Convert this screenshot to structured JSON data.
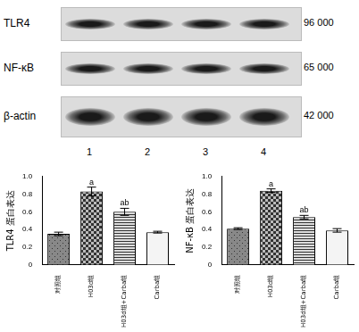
{
  "blot": {
    "rows": [
      {
        "label": "TLR4",
        "size": "96 000"
      },
      {
        "label": "NF-κB",
        "size": "65 000"
      },
      {
        "label": "β-actin",
        "size": "42 000"
      }
    ],
    "lanes": [
      "1",
      "2",
      "3",
      "4"
    ]
  },
  "chart_data": [
    {
      "type": "bar",
      "y_label": "TLR4 蛋白表达",
      "categories": [
        "对照组",
        "H03d组",
        "H03d组+Carba组",
        "Carba组"
      ],
      "values": [
        0.35,
        0.83,
        0.6,
        0.37
      ],
      "errors": [
        0.02,
        0.05,
        0.04,
        0.01
      ],
      "colors": [
        "#888888",
        "#bbbbbb",
        "#dddddd",
        "#f4f4f4"
      ],
      "annotations": [
        {
          "category": "H03d组",
          "text": "a"
        },
        {
          "category": "H03d组+Carba组",
          "text": "ab"
        }
      ],
      "ylim": [
        0,
        1
      ],
      "yticks": [
        0,
        0.2,
        0.4,
        0.6,
        0.8,
        {
          "value": 1,
          "label": "1.0"
        }
      ],
      "grid": false
    },
    {
      "type": "bar",
      "y_label": "NF-κB 蛋白表达",
      "categories": [
        "对照组",
        "H03d组",
        "H03d组+Carba组",
        "Carba组"
      ],
      "values": [
        0.41,
        0.84,
        0.54,
        0.39
      ],
      "errors": [
        0.01,
        0.02,
        0.02,
        0.02
      ],
      "colors": [
        "#888888",
        "#bbbbbb",
        "#dddddd",
        "#f4f4f4"
      ],
      "annotations": [
        {
          "category": "H03d组",
          "text": "a"
        },
        {
          "category": "H03d组+Carba组",
          "text": "ab"
        }
      ],
      "ylim": [
        0,
        1
      ],
      "yticks": [
        0,
        0.2,
        0.4,
        0.6,
        0.8,
        {
          "value": 1,
          "label": "1.0"
        }
      ],
      "grid": false
    }
  ]
}
